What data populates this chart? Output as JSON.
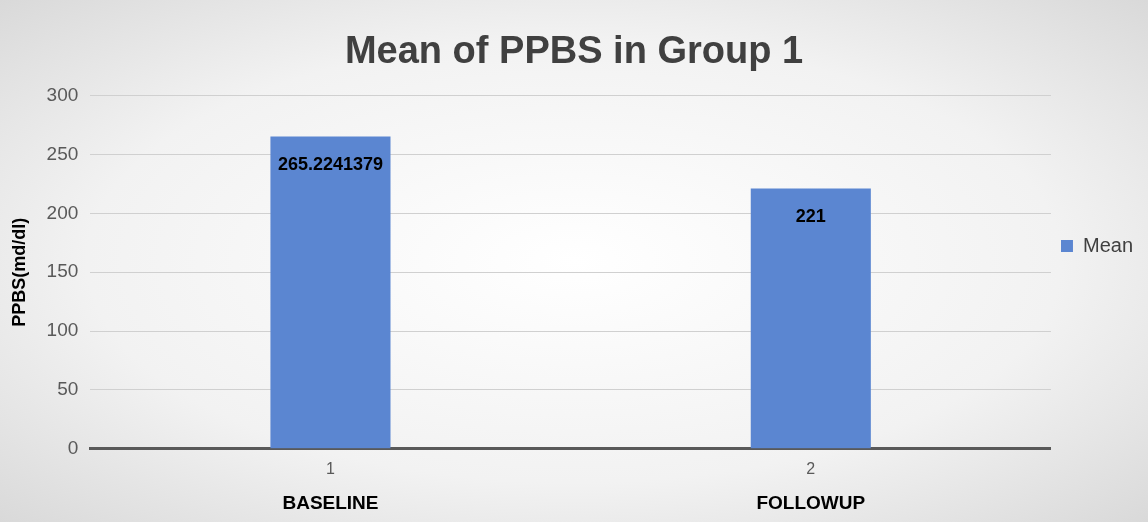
{
  "chart_data": {
    "type": "bar",
    "title": "Mean of PPBS in Group 1",
    "ylabel": "PPBS(md/dl)",
    "categories": [
      "1",
      "2"
    ],
    "series": [
      {
        "name": "Mean",
        "color": "#5b86d1",
        "values": [
          265.2241379,
          221
        ]
      }
    ],
    "ylim": [
      0,
      300
    ],
    "yticks": [
      0,
      50,
      100,
      150,
      200,
      250,
      300
    ],
    "grid": "y",
    "legend": "right",
    "data_labels": true,
    "annotations": [
      "BASELINE",
      "FOLLOWUP"
    ]
  }
}
